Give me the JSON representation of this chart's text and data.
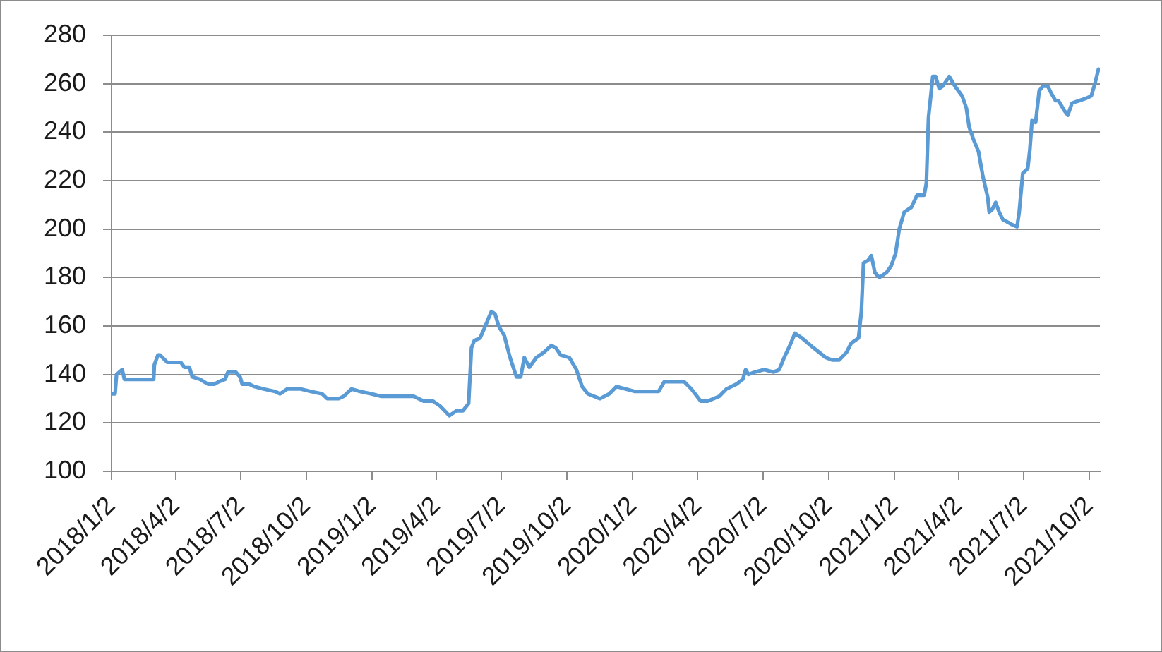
{
  "chart_data": {
    "type": "line",
    "color": "#5b9bd5",
    "line_style": "solid",
    "marker": "none",
    "legend": false,
    "grid": "y",
    "x": [
      "2018-01-02",
      "2018-01-07",
      "2018-01-09",
      "2018-01-17",
      "2018-01-20",
      "2018-03-02",
      "2018-03-03",
      "2018-03-08",
      "2018-03-11",
      "2018-03-21",
      "2018-04-09",
      "2018-04-14",
      "2018-04-21",
      "2018-04-25",
      "2018-05-06",
      "2018-05-17",
      "2018-05-26",
      "2018-06-01",
      "2018-06-10",
      "2018-06-14",
      "2018-06-25",
      "2018-07-01",
      "2018-07-04",
      "2018-07-14",
      "2018-07-21",
      "2018-08-03",
      "2018-08-19",
      "2018-08-26",
      "2018-09-05",
      "2018-09-24",
      "2018-10-08",
      "2018-10-24",
      "2018-10-31",
      "2018-11-16",
      "2018-11-23",
      "2018-12-04",
      "2018-12-16",
      "2019-01-01",
      "2019-01-14",
      "2019-02-20",
      "2019-03-01",
      "2019-03-15",
      "2019-03-28",
      "2019-04-07",
      "2019-04-20",
      "2019-04-30",
      "2019-05-09",
      "2019-05-17",
      "2019-05-21",
      "2019-05-25",
      "2019-06-02",
      "2019-06-08",
      "2019-06-15",
      "2019-06-18",
      "2019-06-23",
      "2019-06-28",
      "2019-07-06",
      "2019-07-14",
      "2019-07-23",
      "2019-07-29",
      "2019-08-03",
      "2019-08-10",
      "2019-08-20",
      "2019-08-30",
      "2019-09-10",
      "2019-09-16",
      "2019-09-23",
      "2019-10-05",
      "2019-10-15",
      "2019-10-23",
      "2019-10-31",
      "2019-11-17",
      "2019-11-30",
      "2019-12-10",
      "2019-12-23",
      "2020-01-05",
      "2020-02-07",
      "2020-02-15",
      "2020-02-27",
      "2020-03-14",
      "2020-03-24",
      "2020-04-06",
      "2020-04-16",
      "2020-05-02",
      "2020-05-12",
      "2020-05-26",
      "2020-06-04",
      "2020-06-08",
      "2020-06-12",
      "2020-06-21",
      "2020-07-04",
      "2020-07-17",
      "2020-07-25",
      "2020-08-01",
      "2020-08-09",
      "2020-08-16",
      "2020-08-26",
      "2020-09-11",
      "2020-09-28",
      "2020-10-07",
      "2020-10-17",
      "2020-10-27",
      "2020-11-03",
      "2020-11-13",
      "2020-11-17",
      "2020-11-20",
      "2020-11-26",
      "2020-12-01",
      "2020-12-06",
      "2020-12-12",
      "2020-12-22",
      "2020-12-29",
      "2021-01-04",
      "2021-01-09",
      "2021-01-16",
      "2021-01-26",
      "2021-02-03",
      "2021-02-13",
      "2021-02-16",
      "2021-02-19",
      "2021-02-25",
      "2021-03-01",
      "2021-03-06",
      "2021-03-11",
      "2021-03-20",
      "2021-03-28",
      "2021-04-07",
      "2021-04-13",
      "2021-04-17",
      "2021-04-23",
      "2021-04-30",
      "2021-05-06",
      "2021-05-13",
      "2021-05-15",
      "2021-05-19",
      "2021-05-24",
      "2021-05-29",
      "2021-06-03",
      "2021-06-15",
      "2021-06-23",
      "2021-06-26",
      "2021-07-01",
      "2021-07-08",
      "2021-07-11",
      "2021-07-14",
      "2021-07-19",
      "2021-07-24",
      "2021-07-29",
      "2021-08-05",
      "2021-08-10",
      "2021-08-16",
      "2021-08-20",
      "2021-08-28",
      "2021-09-02",
      "2021-09-08",
      "2021-09-18",
      "2021-09-28",
      "2021-10-05",
      "2021-10-10",
      "2021-10-15"
    ],
    "values": [
      132,
      132,
      140,
      142,
      138,
      138,
      144,
      148,
      148,
      145,
      145,
      143,
      143,
      139,
      138,
      136,
      136,
      137,
      138,
      141,
      141,
      139,
      136,
      136,
      135,
      134,
      133,
      132,
      134,
      134,
      133,
      132,
      130,
      130,
      131,
      134,
      133,
      132,
      131,
      131,
      131,
      129,
      129,
      127,
      123,
      125,
      125,
      128,
      151,
      154,
      155,
      159,
      164,
      166,
      165,
      160,
      156,
      147,
      139,
      139,
      147,
      143,
      147,
      149,
      152,
      151,
      148,
      147,
      142,
      135,
      132,
      130,
      132,
      135,
      134,
      133,
      133,
      137,
      137,
      137,
      134,
      129,
      129,
      131,
      134,
      136,
      138,
      142,
      140,
      141,
      142,
      141,
      142,
      147,
      152,
      157,
      155,
      151,
      147,
      146,
      146,
      149,
      153,
      155,
      166,
      186,
      187,
      189,
      182,
      180,
      182,
      185,
      190,
      200,
      207,
      209,
      214,
      214,
      219,
      246,
      263,
      263,
      258,
      259,
      263,
      259,
      255,
      250,
      242,
      237,
      232,
      222,
      213,
      207,
      208,
      211,
      207,
      204,
      202,
      201,
      207,
      223,
      225,
      233,
      245,
      244,
      257,
      259,
      259,
      256,
      253,
      253,
      249,
      247,
      252,
      253,
      254,
      255,
      260,
      266
    ],
    "xlim": [
      "2018-01-02",
      "2021-10-17"
    ],
    "xticks": [
      {
        "value": "2018-01-02",
        "label": "2018/1/2"
      },
      {
        "value": "2018-04-02",
        "label": "2018/4/2"
      },
      {
        "value": "2018-07-02",
        "label": "2018/7/2"
      },
      {
        "value": "2018-10-02",
        "label": "2018/10/2"
      },
      {
        "value": "2019-01-02",
        "label": "2019/1/2"
      },
      {
        "value": "2019-04-02",
        "label": "2019/4/2"
      },
      {
        "value": "2019-07-02",
        "label": "2019/7/2"
      },
      {
        "value": "2019-10-02",
        "label": "2019/10/2"
      },
      {
        "value": "2020-01-02",
        "label": "2020/1/2"
      },
      {
        "value": "2020-04-02",
        "label": "2020/4/2"
      },
      {
        "value": "2020-07-02",
        "label": "2020/7/2"
      },
      {
        "value": "2020-10-02",
        "label": "2020/10/2"
      },
      {
        "value": "2021-01-02",
        "label": "2021/1/2"
      },
      {
        "value": "2021-04-02",
        "label": "2021/4/2"
      },
      {
        "value": "2021-07-02",
        "label": "2021/7/2"
      },
      {
        "value": "2021-10-02",
        "label": "2021/10/2"
      }
    ],
    "ylim": [
      100,
      280
    ],
    "yticks": [
      100,
      120,
      140,
      160,
      180,
      200,
      220,
      240,
      260,
      280
    ]
  }
}
